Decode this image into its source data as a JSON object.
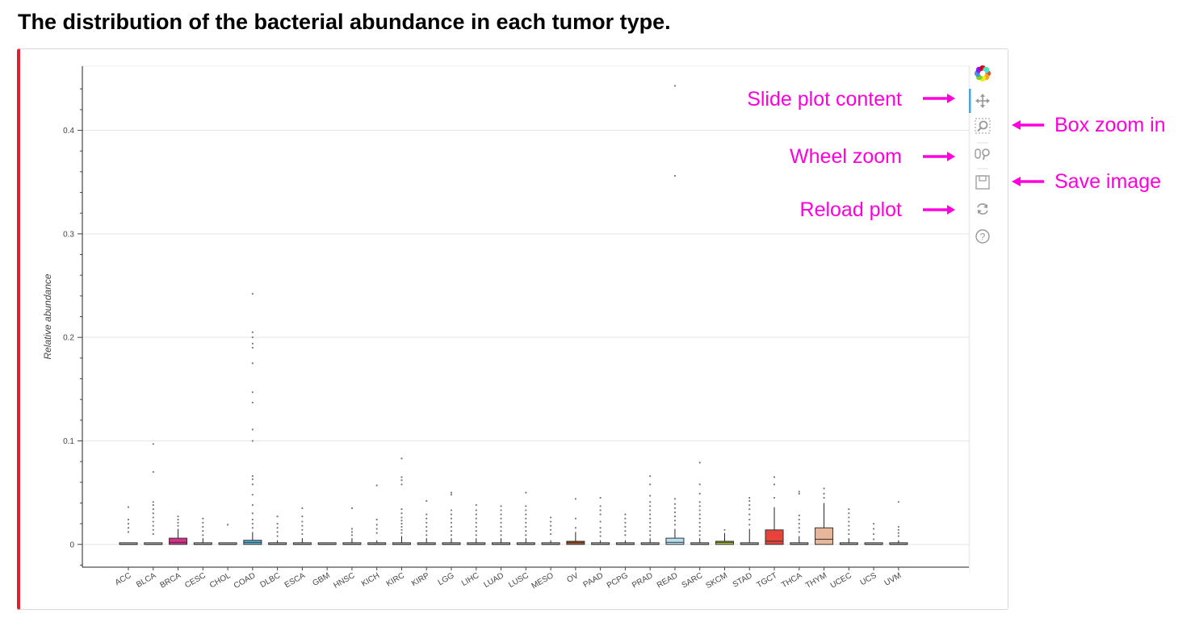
{
  "page": {
    "title": "The distribution of the bacterial abundance in each tumor type."
  },
  "toolbar": {
    "tools": [
      {
        "name": "bokeh-logo-icon",
        "interactable": false
      },
      {
        "name": "pan-tool-icon",
        "interactable": true,
        "active": true
      },
      {
        "name": "box-zoom-tool-icon",
        "interactable": true
      },
      {
        "name": "wheel-zoom-tool-icon",
        "interactable": true
      },
      {
        "name": "save-tool-icon",
        "interactable": true
      },
      {
        "name": "reset-tool-icon",
        "interactable": true
      },
      {
        "name": "help-tool-icon",
        "interactable": true
      }
    ],
    "active_color": "#4ba3e3"
  },
  "annotations": {
    "slide": "Slide plot content",
    "box_zoom": "Box zoom in",
    "wheel_zoom": "Wheel zoom",
    "save": "Save image",
    "reload": "Reload plot",
    "color": "#ff00dd"
  },
  "chart_data": {
    "type": "box",
    "title": "",
    "xlabel": "",
    "ylabel": "Relative abundance",
    "ylim": [
      -0.022,
      0.462
    ],
    "yticks": [
      0,
      0.1,
      0.2,
      0.3,
      0.4
    ],
    "ytick_labels": [
      "0",
      "0.1",
      "0.2",
      "0.3",
      "0.4"
    ],
    "grid": true,
    "categories": [
      "ACC",
      "BLCA",
      "BRCA",
      "CESC",
      "CHOL",
      "COAD",
      "DLBC",
      "ESCA",
      "GBM",
      "HNSC",
      "KICH",
      "KIRC",
      "KIRP",
      "LGG",
      "LIHC",
      "LUAD",
      "LUSC",
      "MESO",
      "OV",
      "PAAD",
      "PCPG",
      "PRAD",
      "READ",
      "SARC",
      "SKCM",
      "STAD",
      "TGCT",
      "THCA",
      "THYM",
      "UCEC",
      "UCS",
      "UVM"
    ],
    "boxes": [
      {
        "category": "ACC",
        "q1": 0.0,
        "median": 0.0,
        "q3": 0.001,
        "whisker_high": 0.001,
        "color": "#bbbbbb",
        "outliers": [
          0.012,
          0.016,
          0.02,
          0.024,
          0.036
        ]
      },
      {
        "category": "BLCA",
        "q1": 0.0,
        "median": 0.0,
        "q3": 0.001,
        "whisker_high": 0.001,
        "color": "#bbbbbb",
        "outliers": [
          0.01,
          0.014,
          0.018,
          0.022,
          0.026,
          0.03,
          0.034,
          0.038,
          0.041,
          0.07,
          0.097
        ]
      },
      {
        "category": "BRCA",
        "q1": 0.0,
        "median": 0.002,
        "q3": 0.006,
        "whisker_high": 0.015,
        "color": "#d6318b",
        "outliers": [
          0.018,
          0.021,
          0.024,
          0.027
        ]
      },
      {
        "category": "CESC",
        "q1": 0.0,
        "median": 0.0,
        "q3": 0.001,
        "whisker_high": 0.006,
        "color": "#bbbbbb",
        "outliers": [
          0.009,
          0.013,
          0.017,
          0.021,
          0.025
        ]
      },
      {
        "category": "CHOL",
        "q1": 0.0,
        "median": 0.0,
        "q3": 0.001,
        "whisker_high": 0.001,
        "color": "#bbbbbb",
        "outliers": [
          0.019
        ]
      },
      {
        "category": "COAD",
        "q1": 0.0,
        "median": 0.002,
        "q3": 0.004,
        "whisker_high": 0.012,
        "color": "#5ab4df",
        "outliers": [
          0.016,
          0.02,
          0.024,
          0.03,
          0.038,
          0.048,
          0.058,
          0.063,
          0.066,
          0.1,
          0.111,
          0.137,
          0.147,
          0.175,
          0.19,
          0.194,
          0.2,
          0.205,
          0.242
        ]
      },
      {
        "category": "DLBC",
        "q1": 0.0,
        "median": 0.0,
        "q3": 0.001,
        "whisker_high": 0.004,
        "color": "#bbbbbb",
        "outliers": [
          0.008,
          0.012,
          0.016,
          0.02,
          0.027
        ]
      },
      {
        "category": "ESCA",
        "q1": 0.0,
        "median": 0.0,
        "q3": 0.001,
        "whisker_high": 0.006,
        "color": "#bbbbbb",
        "outliers": [
          0.01,
          0.014,
          0.018,
          0.022,
          0.027,
          0.035
        ]
      },
      {
        "category": "GBM",
        "q1": 0.0,
        "median": 0.0,
        "q3": 0.001,
        "whisker_high": 0.001,
        "color": "#bbbbbb",
        "outliers": []
      },
      {
        "category": "HNSC",
        "q1": 0.0,
        "median": 0.0,
        "q3": 0.001,
        "whisker_high": 0.006,
        "color": "#bbbbbb",
        "outliers": [
          0.009,
          0.012,
          0.015,
          0.035
        ]
      },
      {
        "category": "KICH",
        "q1": 0.0,
        "median": 0.0,
        "q3": 0.001,
        "whisker_high": 0.004,
        "color": "#bbbbbb",
        "outliers": [
          0.011,
          0.015,
          0.019,
          0.024,
          0.057
        ]
      },
      {
        "category": "KIRC",
        "q1": 0.0,
        "median": 0.0,
        "q3": 0.001,
        "whisker_high": 0.008,
        "color": "#bbbbbb",
        "outliers": [
          0.011,
          0.014,
          0.017,
          0.02,
          0.023,
          0.026,
          0.03,
          0.034,
          0.058,
          0.062,
          0.065,
          0.083
        ]
      },
      {
        "category": "KIRP",
        "q1": 0.0,
        "median": 0.0,
        "q3": 0.001,
        "whisker_high": 0.006,
        "color": "#bbbbbb",
        "outliers": [
          0.009,
          0.013,
          0.017,
          0.021,
          0.025,
          0.029,
          0.042
        ]
      },
      {
        "category": "LGG",
        "q1": 0.0,
        "median": 0.0,
        "q3": 0.001,
        "whisker_high": 0.006,
        "color": "#bbbbbb",
        "outliers": [
          0.009,
          0.013,
          0.017,
          0.021,
          0.025,
          0.029,
          0.033,
          0.048,
          0.05
        ]
      },
      {
        "category": "LIHC",
        "q1": 0.0,
        "median": 0.0,
        "q3": 0.001,
        "whisker_high": 0.006,
        "color": "#bbbbbb",
        "outliers": [
          0.009,
          0.013,
          0.017,
          0.021,
          0.025,
          0.029,
          0.033,
          0.038
        ]
      },
      {
        "category": "LUAD",
        "q1": 0.0,
        "median": 0.0,
        "q3": 0.001,
        "whisker_high": 0.006,
        "color": "#bbbbbb",
        "outliers": [
          0.009,
          0.013,
          0.017,
          0.021,
          0.025,
          0.029,
          0.033,
          0.037
        ]
      },
      {
        "category": "LUSC",
        "q1": 0.0,
        "median": 0.0,
        "q3": 0.001,
        "whisker_high": 0.006,
        "color": "#bbbbbb",
        "outliers": [
          0.009,
          0.013,
          0.017,
          0.021,
          0.025,
          0.029,
          0.033,
          0.037,
          0.05
        ]
      },
      {
        "category": "MESO",
        "q1": 0.0,
        "median": 0.0,
        "q3": 0.001,
        "whisker_high": 0.004,
        "color": "#bbbbbb",
        "outliers": [
          0.01,
          0.014,
          0.018,
          0.022,
          0.026
        ]
      },
      {
        "category": "OV",
        "q1": 0.0,
        "median": 0.002,
        "q3": 0.003,
        "whisker_high": 0.012,
        "color": "#b5561e",
        "outliers": [
          0.016,
          0.025,
          0.044
        ]
      },
      {
        "category": "PAAD",
        "q1": 0.0,
        "median": 0.0,
        "q3": 0.001,
        "whisker_high": 0.004,
        "color": "#bbbbbb",
        "outliers": [
          0.008,
          0.012,
          0.016,
          0.022,
          0.029,
          0.033,
          0.037,
          0.045
        ]
      },
      {
        "category": "PCPG",
        "q1": 0.0,
        "median": 0.0,
        "q3": 0.001,
        "whisker_high": 0.004,
        "color": "#bbbbbb",
        "outliers": [
          0.009,
          0.013,
          0.017,
          0.021,
          0.025,
          0.029
        ]
      },
      {
        "category": "PRAD",
        "q1": 0.0,
        "median": 0.0,
        "q3": 0.001,
        "whisker_high": 0.006,
        "color": "#bbbbbb",
        "outliers": [
          0.009,
          0.013,
          0.017,
          0.021,
          0.025,
          0.029,
          0.033,
          0.037,
          0.041,
          0.047,
          0.058,
          0.066
        ]
      },
      {
        "category": "READ",
        "q1": 0.0,
        "median": 0.002,
        "q3": 0.006,
        "whisker_high": 0.015,
        "color": "#b6e1f2",
        "outliers": [
          0.019,
          0.023,
          0.027,
          0.031,
          0.035,
          0.039,
          0.044,
          0.356,
          0.443
        ]
      },
      {
        "category": "SARC",
        "q1": 0.0,
        "median": 0.0,
        "q3": 0.001,
        "whisker_high": 0.006,
        "color": "#bbbbbb",
        "outliers": [
          0.009,
          0.013,
          0.017,
          0.021,
          0.025,
          0.029,
          0.033,
          0.037,
          0.041,
          0.049,
          0.058,
          0.079
        ]
      },
      {
        "category": "SKCM",
        "q1": 0.0,
        "median": 0.002,
        "q3": 0.003,
        "whisker_high": 0.011,
        "color": "#a9c935",
        "outliers": [
          0.014
        ]
      },
      {
        "category": "STAD",
        "q1": 0.0,
        "median": 0.0,
        "q3": 0.001,
        "whisker_high": 0.015,
        "color": "#bbbbbb",
        "outliers": [
          0.019,
          0.024,
          0.029,
          0.034,
          0.038,
          0.042,
          0.045
        ]
      },
      {
        "category": "TGCT",
        "q1": 0.0,
        "median": 0.003,
        "q3": 0.014,
        "whisker_high": 0.036,
        "color": "#e8433a",
        "outliers": [
          0.045,
          0.058,
          0.065
        ]
      },
      {
        "category": "THCA",
        "q1": 0.0,
        "median": 0.0,
        "q3": 0.001,
        "whisker_high": 0.008,
        "color": "#bbbbbb",
        "outliers": [
          0.012,
          0.016,
          0.02,
          0.024,
          0.028,
          0.049,
          0.051
        ]
      },
      {
        "category": "THYM",
        "q1": 0.0,
        "median": 0.005,
        "q3": 0.016,
        "whisker_high": 0.04,
        "color": "#e7b79c",
        "outliers": [
          0.045,
          0.049,
          0.054
        ]
      },
      {
        "category": "UCEC",
        "q1": 0.0,
        "median": 0.0,
        "q3": 0.001,
        "whisker_high": 0.006,
        "color": "#bbbbbb",
        "outliers": [
          0.01,
          0.014,
          0.018,
          0.022,
          0.026,
          0.03,
          0.034
        ]
      },
      {
        "category": "UCS",
        "q1": 0.0,
        "median": 0.0,
        "q3": 0.001,
        "whisker_high": 0.001,
        "color": "#bbbbbb",
        "outliers": [
          0.005,
          0.01,
          0.015,
          0.02
        ]
      },
      {
        "category": "UVM",
        "q1": 0.0,
        "median": 0.0,
        "q3": 0.001,
        "whisker_high": 0.004,
        "color": "#bbbbbb",
        "outliers": [
          0.008,
          0.011,
          0.014,
          0.017,
          0.041
        ]
      }
    ]
  }
}
